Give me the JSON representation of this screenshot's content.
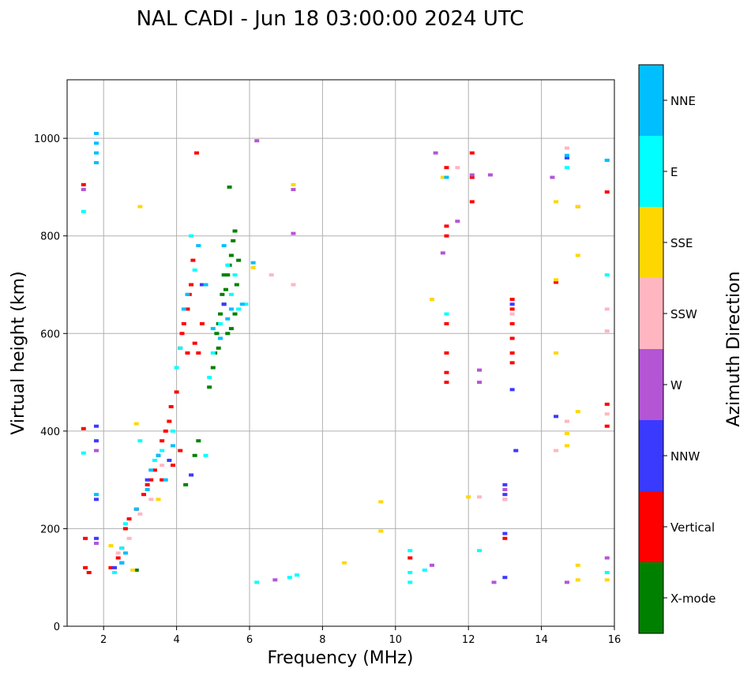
{
  "chart_data": {
    "type": "scatter",
    "title": "NAL CADI - Jun 18 03:00:00 2024 UTC",
    "xlabel": "Frequency (MHz)",
    "ylabel": "Virtual height (km)",
    "xlim": [
      1,
      16
    ],
    "ylim": [
      0,
      1120
    ],
    "xticks": [
      2,
      4,
      6,
      8,
      10,
      12,
      14,
      16
    ],
    "yticks": [
      0,
      200,
      400,
      600,
      800,
      1000
    ],
    "grid": true,
    "colorbar": {
      "label": "Azimuth Direction",
      "categories": [
        {
          "name": "X-mode",
          "color": "#008000"
        },
        {
          "name": "Vertical",
          "color": "#ff0000"
        },
        {
          "name": "NNW",
          "color": "#3a3aff"
        },
        {
          "name": "W",
          "color": "#b455d6"
        },
        {
          "name": "SSW",
          "color": "#ffb6c1"
        },
        {
          "name": "SSE",
          "color": "#ffd700"
        },
        {
          "name": "E",
          "color": "#00ffff"
        },
        {
          "name": "NNE",
          "color": "#00bfff"
        }
      ]
    },
    "series": [
      {
        "name": "X-mode",
        "points": [
          [
            5.0,
            530
          ],
          [
            5.05,
            560
          ],
          [
            5.1,
            600
          ],
          [
            5.15,
            620
          ],
          [
            5.2,
            640
          ],
          [
            5.3,
            660
          ],
          [
            5.35,
            690
          ],
          [
            5.4,
            720
          ],
          [
            5.45,
            740
          ],
          [
            5.5,
            760
          ],
          [
            5.55,
            790
          ],
          [
            5.6,
            810
          ],
          [
            5.5,
            610
          ],
          [
            5.6,
            640
          ],
          [
            5.65,
            700
          ],
          [
            5.7,
            750
          ],
          [
            5.25,
            680
          ],
          [
            5.4,
            600
          ],
          [
            4.9,
            490
          ],
          [
            4.5,
            350
          ],
          [
            4.6,
            380
          ],
          [
            4.25,
            290
          ],
          [
            5.45,
            900
          ],
          [
            2.9,
            115
          ],
          [
            5.15,
            570
          ],
          [
            5.3,
            720
          ]
        ]
      },
      {
        "name": "Vertical",
        "points": [
          [
            1.5,
            120
          ],
          [
            1.6,
            110
          ],
          [
            1.45,
            405
          ],
          [
            1.5,
            180
          ],
          [
            1.45,
            905
          ],
          [
            2.2,
            120
          ],
          [
            2.4,
            140
          ],
          [
            2.5,
            160
          ],
          [
            2.6,
            200
          ],
          [
            2.7,
            220
          ],
          [
            2.9,
            240
          ],
          [
            3.1,
            270
          ],
          [
            3.2,
            290
          ],
          [
            3.3,
            300
          ],
          [
            3.4,
            320
          ],
          [
            3.5,
            350
          ],
          [
            3.6,
            380
          ],
          [
            3.7,
            400
          ],
          [
            3.8,
            420
          ],
          [
            3.85,
            450
          ],
          [
            4.0,
            480
          ],
          [
            4.1,
            570
          ],
          [
            4.15,
            600
          ],
          [
            4.2,
            620
          ],
          [
            4.3,
            650
          ],
          [
            4.35,
            680
          ],
          [
            4.4,
            700
          ],
          [
            4.45,
            750
          ],
          [
            4.5,
            580
          ],
          [
            4.6,
            560
          ],
          [
            4.7,
            620
          ],
          [
            4.55,
            970
          ],
          [
            4.3,
            560
          ],
          [
            3.9,
            330
          ],
          [
            4.1,
            360
          ],
          [
            11.4,
            940
          ],
          [
            11.4,
            820
          ],
          [
            11.4,
            800
          ],
          [
            11.4,
            620
          ],
          [
            11.4,
            560
          ],
          [
            11.4,
            520
          ],
          [
            11.4,
            500
          ],
          [
            10.4,
            140
          ],
          [
            12.1,
            970
          ],
          [
            12.1,
            870
          ],
          [
            12.1,
            920
          ],
          [
            13.2,
            540
          ],
          [
            13.2,
            560
          ],
          [
            13.2,
            590
          ],
          [
            13.2,
            620
          ],
          [
            13.2,
            650
          ],
          [
            13.2,
            670
          ],
          [
            13.0,
            180
          ],
          [
            14.4,
            705
          ],
          [
            15.8,
            890
          ],
          [
            15.8,
            455
          ],
          [
            15.8,
            410
          ],
          [
            3.6,
            300
          ]
        ]
      },
      {
        "name": "NNW",
        "points": [
          [
            1.8,
            410
          ],
          [
            1.8,
            380
          ],
          [
            1.8,
            260
          ],
          [
            1.8,
            180
          ],
          [
            2.3,
            120
          ],
          [
            2.5,
            130
          ],
          [
            3.2,
            300
          ],
          [
            3.8,
            340
          ],
          [
            4.4,
            310
          ],
          [
            4.7,
            700
          ],
          [
            13.2,
            660
          ],
          [
            13.2,
            485
          ],
          [
            13.3,
            360
          ],
          [
            13.0,
            290
          ],
          [
            13.0,
            270
          ],
          [
            13.0,
            190
          ],
          [
            13.0,
            100
          ],
          [
            14.4,
            430
          ],
          [
            14.7,
            960
          ],
          [
            5.3,
            660
          ]
        ]
      },
      {
        "name": "W",
        "points": [
          [
            1.8,
            360
          ],
          [
            1.8,
            170
          ],
          [
            1.45,
            895
          ],
          [
            6.2,
            995
          ],
          [
            6.7,
            95
          ],
          [
            7.2,
            805
          ],
          [
            7.2,
            895
          ],
          [
            11.1,
            970
          ],
          [
            11.0,
            125
          ],
          [
            11.7,
            830
          ],
          [
            12.3,
            525
          ],
          [
            12.3,
            500
          ],
          [
            12.6,
            925
          ],
          [
            12.7,
            90
          ],
          [
            13.0,
            280
          ],
          [
            13.0,
            260
          ],
          [
            14.3,
            920
          ],
          [
            14.7,
            90
          ],
          [
            15.0,
            860
          ],
          [
            15.8,
            140
          ],
          [
            12.1,
            925
          ],
          [
            11.3,
            765
          ]
        ]
      },
      {
        "name": "SSW",
        "points": [
          [
            2.4,
            150
          ],
          [
            2.7,
            180
          ],
          [
            3.0,
            230
          ],
          [
            3.3,
            260
          ],
          [
            3.6,
            330
          ],
          [
            6.6,
            720
          ],
          [
            7.2,
            700
          ],
          [
            11.7,
            940
          ],
          [
            12.3,
            265
          ],
          [
            13.0,
            260
          ],
          [
            13.2,
            640
          ],
          [
            14.4,
            360
          ],
          [
            14.7,
            980
          ],
          [
            14.7,
            420
          ],
          [
            15.0,
            860
          ],
          [
            15.8,
            650
          ],
          [
            15.8,
            605
          ],
          [
            15.8,
            435
          ]
        ]
      },
      {
        "name": "SSE",
        "points": [
          [
            2.2,
            165
          ],
          [
            2.8,
            115
          ],
          [
            2.9,
            415
          ],
          [
            3.0,
            860
          ],
          [
            3.5,
            260
          ],
          [
            6.1,
            735
          ],
          [
            7.2,
            905
          ],
          [
            8.6,
            130
          ],
          [
            9.6,
            255
          ],
          [
            9.6,
            195
          ],
          [
            11.0,
            670
          ],
          [
            11.3,
            920
          ],
          [
            12.0,
            265
          ],
          [
            14.4,
            870
          ],
          [
            14.4,
            560
          ],
          [
            14.4,
            710
          ],
          [
            14.7,
            395
          ],
          [
            14.7,
            370
          ],
          [
            15.0,
            860
          ],
          [
            15.0,
            760
          ],
          [
            15.0,
            440
          ],
          [
            15.0,
            125
          ],
          [
            15.0,
            95
          ],
          [
            15.8,
            95
          ]
        ]
      },
      {
        "name": "E",
        "points": [
          [
            1.45,
            850
          ],
          [
            1.45,
            355
          ],
          [
            2.3,
            110
          ],
          [
            2.5,
            160
          ],
          [
            2.6,
            210
          ],
          [
            3.0,
            380
          ],
          [
            3.4,
            340
          ],
          [
            3.6,
            360
          ],
          [
            3.9,
            400
          ],
          [
            4.0,
            530
          ],
          [
            4.1,
            570
          ],
          [
            4.4,
            800
          ],
          [
            4.5,
            730
          ],
          [
            4.8,
            350
          ],
          [
            4.9,
            510
          ],
          [
            5.0,
            560
          ],
          [
            5.2,
            620
          ],
          [
            5.5,
            680
          ],
          [
            5.6,
            720
          ],
          [
            5.7,
            650
          ],
          [
            6.2,
            90
          ],
          [
            7.1,
            100
          ],
          [
            7.3,
            105
          ],
          [
            10.4,
            155
          ],
          [
            10.4,
            110
          ],
          [
            10.4,
            90
          ],
          [
            10.8,
            115
          ],
          [
            11.4,
            640
          ],
          [
            12.3,
            155
          ],
          [
            14.7,
            940
          ],
          [
            15.8,
            955
          ],
          [
            15.8,
            720
          ],
          [
            15.8,
            110
          ],
          [
            5.9,
            660
          ],
          [
            5.4,
            740
          ]
        ]
      },
      {
        "name": "NNE",
        "points": [
          [
            1.8,
            1010
          ],
          [
            1.8,
            990
          ],
          [
            1.8,
            970
          ],
          [
            1.8,
            950
          ],
          [
            1.8,
            270
          ],
          [
            2.5,
            130
          ],
          [
            2.6,
            150
          ],
          [
            2.9,
            240
          ],
          [
            3.2,
            280
          ],
          [
            3.3,
            320
          ],
          [
            3.5,
            350
          ],
          [
            3.7,
            300
          ],
          [
            3.9,
            370
          ],
          [
            4.2,
            650
          ],
          [
            4.3,
            680
          ],
          [
            4.6,
            780
          ],
          [
            5.0,
            610
          ],
          [
            5.2,
            590
          ],
          [
            5.4,
            630
          ],
          [
            5.5,
            650
          ],
          [
            5.8,
            660
          ],
          [
            6.1,
            745
          ],
          [
            11.4,
            920
          ],
          [
            14.7,
            965
          ],
          [
            15.8,
            955
          ],
          [
            5.3,
            780
          ],
          [
            4.8,
            700
          ]
        ]
      }
    ]
  }
}
